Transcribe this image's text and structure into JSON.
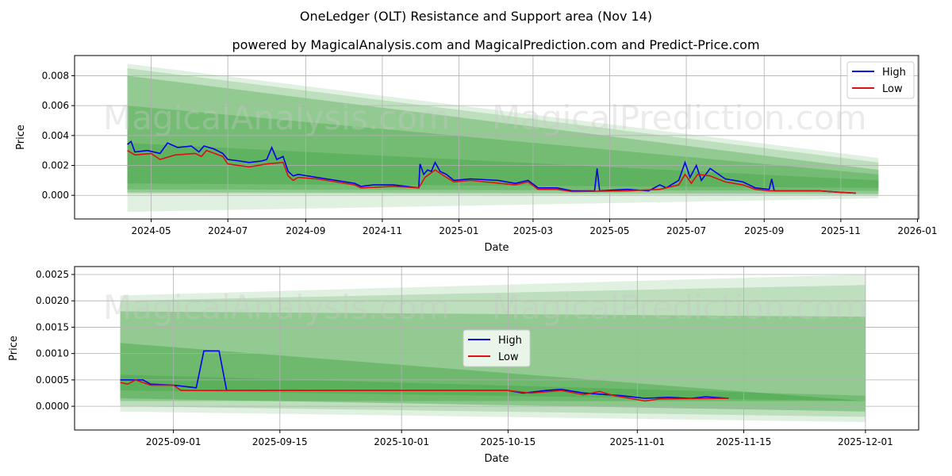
{
  "title": "OneLedger (OLT) Resistance and Support area (Nov 14)",
  "subtitle": "powered by MagicalAnalysis.com and MagicalPrediction.com and Predict-Price.com",
  "watermarks": [
    "MagicalAnalysis.com",
    "MagicalPrediction.com"
  ],
  "colors": {
    "high": "#0000ee",
    "low": "#dd1111",
    "band": "#2e9a2e"
  },
  "chart_data": [
    {
      "type": "line",
      "xlabel": "Date",
      "ylabel": "Price",
      "xlim": [
        "2024-03-01",
        "2026-01-02"
      ],
      "ylim": [
        -0.00158,
        0.00935
      ],
      "xticks": [
        "2024-05",
        "2024-07",
        "2024-09",
        "2024-11",
        "2025-01",
        "2025-03",
        "2025-05",
        "2025-07",
        "2025-09",
        "2025-11",
        "2026-01"
      ],
      "yticks": [
        "0.000",
        "0.002",
        "0.004",
        "0.006",
        "0.008"
      ],
      "ytick_values": [
        0,
        0.002,
        0.004,
        0.006,
        0.008
      ],
      "legend": {
        "position": "top-right",
        "entries": [
          "High",
          "Low"
        ]
      },
      "grid": true,
      "bands": {
        "start": "2024-04-12",
        "end": "2025-12-01",
        "items": [
          {
            "start": [
              -0.0011,
              0.0088
            ],
            "end": [
              -0.0002,
              0.0025
            ],
            "opacity": 0.14
          },
          {
            "start": [
              0.0001,
              0.0085
            ],
            "end": [
              0.0,
              0.0022
            ],
            "opacity": 0.2
          },
          {
            "start": [
              0.0002,
              0.008
            ],
            "end": [
              0.0001,
              0.0017
            ],
            "opacity": 0.3
          },
          {
            "start": [
              0.0004,
              0.006
            ],
            "end": [
              0.0003,
              0.0014
            ],
            "opacity": 0.3
          },
          {
            "start": [
              0.0008,
              0.0035
            ],
            "end": [
              0.0005,
              0.001
            ],
            "opacity": 0.3
          }
        ]
      },
      "series": [
        {
          "name": "High",
          "points": [
            [
              "2024-04-12",
              0.0034
            ],
            [
              "2024-04-15",
              0.0036
            ],
            [
              "2024-04-18",
              0.0029
            ],
            [
              "2024-04-28",
              0.003
            ],
            [
              "2024-05-08",
              0.0028
            ],
            [
              "2024-05-14",
              0.0035
            ],
            [
              "2024-05-22",
              0.0032
            ],
            [
              "2024-06-02",
              0.0033
            ],
            [
              "2024-06-08",
              0.0029
            ],
            [
              "2024-06-12",
              0.0033
            ],
            [
              "2024-06-20",
              0.0031
            ],
            [
              "2024-06-27",
              0.0028
            ],
            [
              "2024-07-01",
              0.0024
            ],
            [
              "2024-07-10",
              0.0023
            ],
            [
              "2024-07-18",
              0.0022
            ],
            [
              "2024-07-28",
              0.0023
            ],
            [
              "2024-08-01",
              0.0024
            ],
            [
              "2024-08-05",
              0.0032
            ],
            [
              "2024-08-09",
              0.0024
            ],
            [
              "2024-08-14",
              0.0026
            ],
            [
              "2024-08-18",
              0.0016
            ],
            [
              "2024-08-22",
              0.0013
            ],
            [
              "2024-08-26",
              0.0014
            ],
            [
              "2024-09-10",
              0.0012
            ],
            [
              "2024-09-25",
              0.001
            ],
            [
              "2024-10-10",
              0.0008
            ],
            [
              "2024-10-15",
              0.0006
            ],
            [
              "2024-10-25",
              0.0007
            ],
            [
              "2024-11-10",
              0.0007
            ],
            [
              "2024-11-20",
              0.0006
            ],
            [
              "2024-11-30",
              0.0005
            ],
            [
              "2024-12-01",
              0.0021
            ],
            [
              "2024-12-04",
              0.0014
            ],
            [
              "2024-12-07",
              0.0017
            ],
            [
              "2024-12-10",
              0.0016
            ],
            [
              "2024-12-13",
              0.0022
            ],
            [
              "2024-12-17",
              0.0016
            ],
            [
              "2024-12-22",
              0.0014
            ],
            [
              "2024-12-28",
              0.001
            ],
            [
              "2025-01-10",
              0.0011
            ],
            [
              "2025-02-01",
              0.001
            ],
            [
              "2025-02-15",
              0.0008
            ],
            [
              "2025-02-25",
              0.001
            ],
            [
              "2025-03-05",
              0.0005
            ],
            [
              "2025-03-20",
              0.0005
            ],
            [
              "2025-04-01",
              0.0003
            ],
            [
              "2025-04-19",
              0.0003
            ],
            [
              "2025-04-21",
              0.0018
            ],
            [
              "2025-04-23",
              0.0003
            ],
            [
              "2025-05-15",
              0.0004
            ],
            [
              "2025-06-01",
              0.0003
            ],
            [
              "2025-06-10",
              0.0007
            ],
            [
              "2025-06-15",
              0.0005
            ],
            [
              "2025-06-25",
              0.001
            ],
            [
              "2025-06-30",
              0.0022
            ],
            [
              "2025-07-04",
              0.0012
            ],
            [
              "2025-07-09",
              0.002
            ],
            [
              "2025-07-13",
              0.001
            ],
            [
              "2025-07-20",
              0.0018
            ],
            [
              "2025-08-01",
              0.0011
            ],
            [
              "2025-08-15",
              0.0009
            ],
            [
              "2025-08-25",
              0.0005
            ],
            [
              "2025-09-05",
              0.0004
            ],
            [
              "2025-09-07",
              0.0011
            ],
            [
              "2025-09-09",
              0.0003
            ],
            [
              "2025-10-15",
              0.0003
            ],
            [
              "2025-11-01",
              0.0002
            ],
            [
              "2025-11-13",
              0.00015
            ]
          ]
        },
        {
          "name": "Low",
          "points": [
            [
              "2024-04-12",
              0.003
            ],
            [
              "2024-04-18",
              0.0027
            ],
            [
              "2024-05-01",
              0.0028
            ],
            [
              "2024-05-08",
              0.0024
            ],
            [
              "2024-05-20",
              0.0027
            ],
            [
              "2024-06-05",
              0.0028
            ],
            [
              "2024-06-10",
              0.0026
            ],
            [
              "2024-06-14",
              0.003
            ],
            [
              "2024-06-27",
              0.0026
            ],
            [
              "2024-07-01",
              0.0021
            ],
            [
              "2024-07-18",
              0.0019
            ],
            [
              "2024-08-01",
              0.0021
            ],
            [
              "2024-08-14",
              0.0022
            ],
            [
              "2024-08-18",
              0.0013
            ],
            [
              "2024-08-22",
              0.001
            ],
            [
              "2024-08-26",
              0.0012
            ],
            [
              "2024-09-10",
              0.0011
            ],
            [
              "2024-09-25",
              0.0009
            ],
            [
              "2024-10-10",
              0.0007
            ],
            [
              "2024-10-15",
              0.0005
            ],
            [
              "2024-11-10",
              0.0006
            ],
            [
              "2024-11-30",
              0.0005
            ],
            [
              "2024-12-05",
              0.0012
            ],
            [
              "2024-12-13",
              0.0017
            ],
            [
              "2024-12-22",
              0.0012
            ],
            [
              "2024-12-28",
              0.0009
            ],
            [
              "2025-01-10",
              0.001
            ],
            [
              "2025-02-15",
              0.0007
            ],
            [
              "2025-02-25",
              0.0009
            ],
            [
              "2025-03-05",
              0.0004
            ],
            [
              "2025-03-20",
              0.0004
            ],
            [
              "2025-04-01",
              0.00025
            ],
            [
              "2025-05-15",
              0.0003
            ],
            [
              "2025-06-10",
              0.0004
            ],
            [
              "2025-06-25",
              0.0007
            ],
            [
              "2025-06-30",
              0.0014
            ],
            [
              "2025-07-05",
              0.0008
            ],
            [
              "2025-07-10",
              0.0014
            ],
            [
              "2025-07-20",
              0.0013
            ],
            [
              "2025-08-01",
              0.0009
            ],
            [
              "2025-08-15",
              0.0007
            ],
            [
              "2025-08-25",
              0.0004
            ],
            [
              "2025-09-05",
              0.0003
            ],
            [
              "2025-10-15",
              0.0003
            ],
            [
              "2025-11-01",
              0.0002
            ],
            [
              "2025-11-13",
              0.00015
            ]
          ]
        }
      ]
    },
    {
      "type": "line",
      "xlabel": "Date",
      "ylabel": "Price",
      "xlim": [
        "2025-08-19",
        "2025-12-08"
      ],
      "ylim": [
        -0.00045,
        0.00265
      ],
      "xticks": [
        "2025-09-01",
        "2025-09-15",
        "2025-10-01",
        "2025-10-15",
        "2025-11-01",
        "2025-11-15",
        "2025-12-01"
      ],
      "yticks": [
        "0.0000",
        "0.0005",
        "0.0010",
        "0.0015",
        "0.0020",
        "0.0025"
      ],
      "ytick_values": [
        0,
        0.0005,
        0.001,
        0.0015,
        0.002,
        0.0025
      ],
      "legend": {
        "position": "center",
        "entries": [
          "High",
          "Low"
        ]
      },
      "grid": true,
      "bands": {
        "start": "2025-08-25",
        "end": "2025-12-01",
        "items": [
          {
            "start": [
              -0.0001,
              0.0021
            ],
            "end": [
              -0.0003,
              0.0025
            ],
            "opacity": 0.14
          },
          {
            "start": [
              0.0,
              0.002
            ],
            "end": [
              -0.0002,
              0.0023
            ],
            "opacity": 0.2
          },
          {
            "start": [
              0.0001,
              0.0018
            ],
            "end": [
              0.0001,
              0.0017
            ],
            "opacity": 0.3
          },
          {
            "start": [
              0.00015,
              0.0012
            ],
            "end": [
              -0.0001,
              0.0001
            ],
            "opacity": 0.35
          },
          {
            "start": [
              0.0003,
              0.0006
            ],
            "end": [
              0.0001,
              0.0002
            ],
            "opacity": 0.3
          }
        ]
      },
      "series": [
        {
          "name": "High",
          "points": [
            [
              "2025-08-25",
              0.0005
            ],
            [
              "2025-08-28",
              0.0005
            ],
            [
              "2025-08-29",
              0.00042
            ],
            [
              "2025-09-01",
              0.0004
            ],
            [
              "2025-09-04",
              0.00035
            ],
            [
              "2025-09-05",
              0.00105
            ],
            [
              "2025-09-07",
              0.00105
            ],
            [
              "2025-09-08",
              0.0003
            ],
            [
              "2025-10-15",
              0.0003
            ],
            [
              "2025-10-17",
              0.00025
            ],
            [
              "2025-10-20",
              0.0003
            ],
            [
              "2025-10-22",
              0.00032
            ],
            [
              "2025-10-25",
              0.00025
            ],
            [
              "2025-10-28",
              0.00022
            ],
            [
              "2025-10-30",
              0.0002
            ],
            [
              "2025-11-02",
              0.00015
            ],
            [
              "2025-11-05",
              0.00017
            ],
            [
              "2025-11-08",
              0.00015
            ],
            [
              "2025-11-10",
              0.00018
            ],
            [
              "2025-11-13",
              0.00015
            ]
          ]
        },
        {
          "name": "Low",
          "points": [
            [
              "2025-08-25",
              0.00045
            ],
            [
              "2025-08-26",
              0.00042
            ],
            [
              "2025-08-27",
              0.0005
            ],
            [
              "2025-08-29",
              0.0004
            ],
            [
              "2025-09-01",
              0.0004
            ],
            [
              "2025-09-02",
              0.0003
            ],
            [
              "2025-10-15",
              0.0003
            ],
            [
              "2025-10-18",
              0.00025
            ],
            [
              "2025-10-22",
              0.0003
            ],
            [
              "2025-10-25",
              0.00022
            ],
            [
              "2025-10-27",
              0.00028
            ],
            [
              "2025-10-29",
              0.0002
            ],
            [
              "2025-10-31",
              0.00015
            ],
            [
              "2025-11-02",
              0.0001
            ],
            [
              "2025-11-04",
              0.00014
            ],
            [
              "2025-11-13",
              0.00015
            ]
          ]
        }
      ]
    }
  ]
}
